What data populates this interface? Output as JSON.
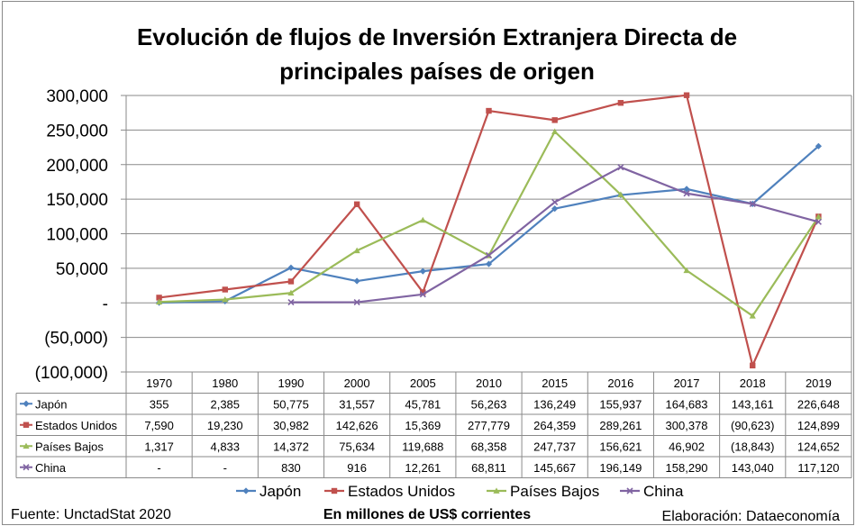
{
  "title_lines": [
    "Evolución de flujos de Inversión Extranjera Directa de",
    "principales países de origen"
  ],
  "footer": {
    "source": "Fuente: UnctadStat 2020",
    "units": "En millones de US$ corrientes",
    "credit": "Elaboración: Dataeconomía"
  },
  "chart_data": {
    "type": "line",
    "categories": [
      "1970",
      "1980",
      "1990",
      "2000",
      "2005",
      "2010",
      "2015",
      "2016",
      "2017",
      "2018",
      "2019"
    ],
    "ylim": [
      -100000,
      300000
    ],
    "yticks": [
      -100000,
      -50000,
      0,
      50000,
      100000,
      150000,
      200000,
      250000,
      300000
    ],
    "ytick_labels": [
      "(100,000)",
      "(50,000)",
      "-",
      "50,000",
      "100,000",
      "150,000",
      "200,000",
      "250,000",
      "300,000"
    ],
    "grid": true,
    "legend_position": "bottom",
    "series": [
      {
        "name": "Japón",
        "color": "#4f81bd",
        "marker": "diamond",
        "values": [
          355,
          2385,
          50775,
          31557,
          45781,
          56263,
          136249,
          155937,
          164683,
          143161,
          226648
        ],
        "labels": [
          "355",
          "2,385",
          "50,775",
          "31,557",
          "45,781",
          "56,263",
          "136,249",
          "155,937",
          "164,683",
          "143,161",
          "226,648"
        ]
      },
      {
        "name": "Estados Unidos",
        "color": "#c0504d",
        "marker": "square",
        "values": [
          7590,
          19230,
          30982,
          142626,
          15369,
          277779,
          264359,
          289261,
          300378,
          -90623,
          124899
        ],
        "labels": [
          "7,590",
          "19,230",
          "30,982",
          "142,626",
          "15,369",
          "277,779",
          "264,359",
          "289,261",
          "300,378",
          "(90,623)",
          "124,899"
        ]
      },
      {
        "name": "Países Bajos",
        "color": "#9bbb59",
        "marker": "triangle",
        "values": [
          1317,
          4833,
          14372,
          75634,
          119688,
          68358,
          247737,
          156621,
          46902,
          -18843,
          124652
        ],
        "labels": [
          "1,317",
          "4,833",
          "14,372",
          "75,634",
          "119,688",
          "68,358",
          "247,737",
          "156,621",
          "46,902",
          "(18,843)",
          "124,652"
        ]
      },
      {
        "name": "China",
        "color": "#8064a2",
        "marker": "x",
        "values": [
          null,
          null,
          830,
          916,
          12261,
          68811,
          145667,
          196149,
          158290,
          143040,
          117120
        ],
        "labels": [
          "-",
          "-",
          "830",
          "916",
          "12,261",
          "68,811",
          "145,667",
          "196,149",
          "158,290",
          "143,040",
          "117,120"
        ]
      }
    ]
  }
}
